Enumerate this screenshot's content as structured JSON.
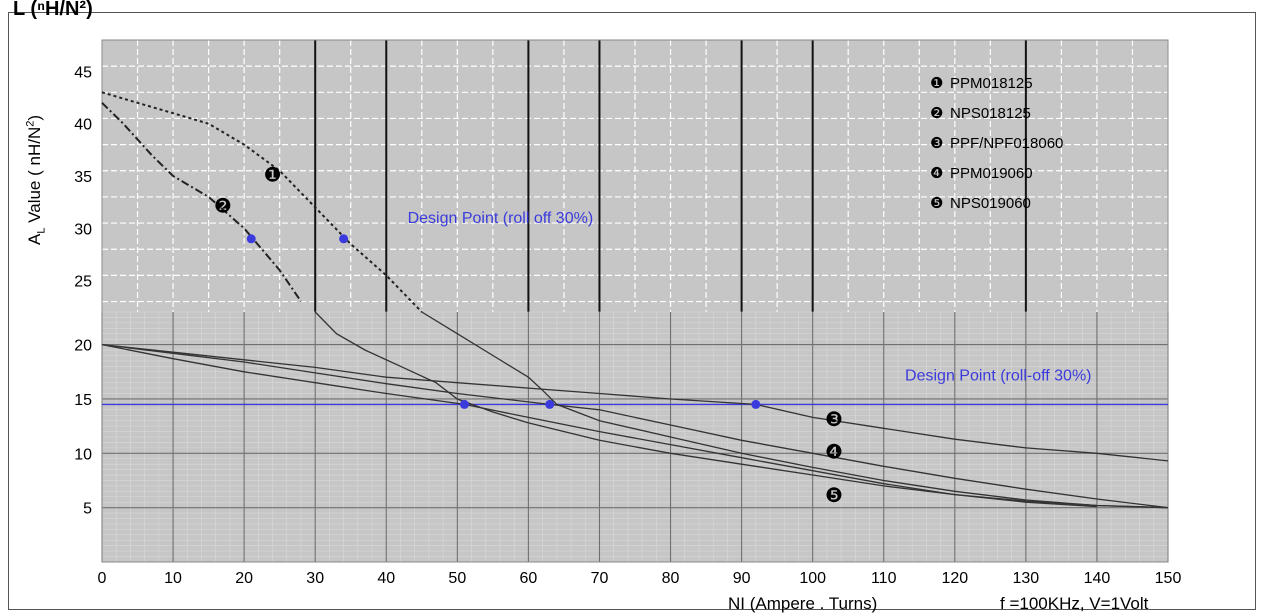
{
  "header": {
    "title": "L (ⁿH/N²)"
  },
  "chart_data": {
    "type": "line",
    "ylabel": {
      "main": "A",
      "sub": "L",
      "rest": " Value ( nH/N",
      "sup": "2",
      "close": ")"
    },
    "xlabel": "NI (Ampere . Turns)",
    "conditions": "f =100KHz, V=1Volt",
    "xlim": [
      0,
      150
    ],
    "upper_panel": {
      "ylim": [
        22,
        48
      ],
      "yticks": [
        25,
        30,
        35,
        40,
        45
      ],
      "series": [
        {
          "id": "1",
          "marker": "❶",
          "points": [
            [
              0,
              43
            ],
            [
              5,
              42
            ],
            [
              10,
              41
            ],
            [
              15,
              40
            ],
            [
              20,
              38
            ],
            [
              25,
              35.5
            ],
            [
              30,
              32
            ],
            [
              35,
              28.5
            ],
            [
              40,
              25.5
            ],
            [
              45,
              22
            ]
          ]
        },
        {
          "id": "2",
          "marker": "❷",
          "points": [
            [
              0,
              42
            ],
            [
              3,
              40
            ],
            [
              7,
              37
            ],
            [
              10,
              35
            ],
            [
              15,
              33
            ],
            [
              20,
              30
            ],
            [
              25,
              26
            ],
            [
              28,
              23
            ]
          ]
        }
      ],
      "design_label": "Design Point (roll off 30%)",
      "design_points": [
        [
          21,
          29
        ],
        [
          34,
          29
        ]
      ],
      "marker_labels": [
        [
          24,
          35
        ],
        [
          17,
          32
        ]
      ]
    },
    "lower_panel": {
      "ylim": [
        0,
        23
      ],
      "yticks": [
        5,
        10,
        15,
        20
      ],
      "design_line": 14.5,
      "design_label": "Design Point (roll-off 30%)",
      "series": [
        {
          "id": "1",
          "points": [
            [
              45,
              23
            ],
            [
              50,
              21
            ],
            [
              55,
              19
            ],
            [
              60,
              17
            ],
            [
              62,
              15.8
            ],
            [
              64,
              14.5
            ],
            [
              70,
              13
            ],
            [
              80,
              11.5
            ],
            [
              90,
              10
            ],
            [
              100,
              8.7
            ],
            [
              110,
              7.5
            ],
            [
              120,
              6.5
            ],
            [
              130,
              5.7
            ],
            [
              140,
              5.2
            ],
            [
              150,
              5
            ]
          ]
        },
        {
          "id": "2",
          "points": [
            [
              30,
              23
            ],
            [
              33,
              21
            ],
            [
              37,
              19.5
            ],
            [
              42,
              18
            ],
            [
              47,
              16.5
            ],
            [
              50,
              15
            ],
            [
              55,
              13.8
            ],
            [
              60,
              12.8
            ],
            [
              70,
              11.2
            ],
            [
              80,
              10
            ],
            [
              90,
              9
            ],
            [
              100,
              8
            ],
            [
              110,
              7
            ],
            [
              120,
              6.2
            ],
            [
              130,
              5.5
            ],
            [
              140,
              5.1
            ]
          ]
        },
        {
          "id": "3",
          "points": [
            [
              0,
              20
            ],
            [
              10,
              19.3
            ],
            [
              20,
              18.6
            ],
            [
              30,
              17.9
            ],
            [
              40,
              17
            ],
            [
              50,
              16.5
            ],
            [
              60,
              16
            ],
            [
              70,
              15.5
            ],
            [
              80,
              15
            ],
            [
              92,
              14.5
            ],
            [
              100,
              13.3
            ],
            [
              110,
              12.3
            ],
            [
              120,
              11.3
            ],
            [
              130,
              10.5
            ],
            [
              140,
              10
            ],
            [
              150,
              9.3
            ]
          ]
        },
        {
          "id": "4",
          "points": [
            [
              0,
              20
            ],
            [
              10,
              19.2
            ],
            [
              20,
              18.4
            ],
            [
              30,
              17.4
            ],
            [
              40,
              16.4
            ],
            [
              50,
              15.5
            ],
            [
              63,
              14.5
            ],
            [
              70,
              14
            ],
            [
              80,
              12.6
            ],
            [
              90,
              11.2
            ],
            [
              100,
              10
            ],
            [
              110,
              8.8
            ],
            [
              120,
              7.7
            ],
            [
              130,
              6.7
            ],
            [
              140,
              5.8
            ],
            [
              150,
              5
            ]
          ]
        },
        {
          "id": "5",
          "points": [
            [
              0,
              20
            ],
            [
              10,
              18.7
            ],
            [
              20,
              17.5
            ],
            [
              30,
              16.5
            ],
            [
              40,
              15.5
            ],
            [
              51,
              14.5
            ],
            [
              60,
              13.3
            ],
            [
              70,
              12
            ],
            [
              80,
              10.8
            ],
            [
              90,
              9.6
            ],
            [
              100,
              8.4
            ],
            [
              110,
              7.2
            ],
            [
              120,
              6.2
            ],
            [
              130,
              5.6
            ],
            [
              140,
              5.2
            ],
            [
              150,
              5
            ]
          ]
        }
      ],
      "design_points": [
        [
          51,
          14.5
        ],
        [
          63,
          14.5
        ],
        [
          92,
          14.5
        ]
      ],
      "marker_labels": [
        [
          103,
          13
        ],
        [
          103,
          10
        ],
        [
          103,
          6
        ]
      ]
    },
    "xticks": [
      0,
      10,
      20,
      30,
      40,
      50,
      60,
      70,
      80,
      90,
      100,
      110,
      120,
      130,
      140,
      150
    ],
    "legend": [
      {
        "marker": "❶",
        "label": "PPM018125"
      },
      {
        "marker": "❷",
        "label": "NPS018125"
      },
      {
        "marker": "❸",
        "label": "PPF/NPF018060"
      },
      {
        "marker": "❹",
        "label": "PPM019060"
      },
      {
        "marker": "❺",
        "label": "NPS019060"
      }
    ],
    "colors": {
      "panel_bg": "#c6c6c6",
      "design": "#3b3bdd",
      "curve": "#222222",
      "grid": "#ffffff"
    }
  }
}
